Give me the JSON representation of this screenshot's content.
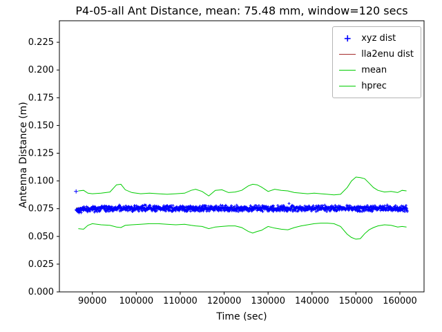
{
  "chart_data": {
    "type": "line",
    "title": "P4-05-all Ant Distance, mean: 75.48 mm, window=120 secs",
    "xlabel": "Time (sec)",
    "ylabel": "Antenna Distance (m)",
    "xlim": [
      82500,
      165500
    ],
    "ylim": [
      0,
      0.2444
    ],
    "xticks": [
      90000,
      100000,
      110000,
      120000,
      130000,
      140000,
      150000,
      160000
    ],
    "yticks": [
      0.0,
      0.025,
      0.05,
      0.075,
      0.1,
      0.125,
      0.15,
      0.175,
      0.2,
      0.225
    ],
    "grid": false,
    "legend_position": "upper right",
    "mean_value_mm": 75.48,
    "window_secs": 120,
    "series": [
      {
        "name": "xyz dist",
        "type": "scatter_plus",
        "color": "#0000ff",
        "x_start": 86300,
        "x_end": 161700,
        "base": 0.0752,
        "noise": 0.0032,
        "count": 1300,
        "outliers": [
          [
            86300,
            0.0905
          ]
        ]
      },
      {
        "name": "lla2enu dist",
        "type": "line",
        "color": "#a52a2a",
        "points": [
          [
            86300,
            0.0757
          ],
          [
            100000,
            0.0756
          ],
          [
            120000,
            0.0757
          ],
          [
            140000,
            0.0756
          ],
          [
            161700,
            0.0757
          ]
        ]
      },
      {
        "name": "mean",
        "type": "line",
        "color": "#00cc00",
        "points": [
          [
            86300,
            0.0753
          ],
          [
            88000,
            0.0751
          ],
          [
            90000,
            0.0754
          ],
          [
            93000,
            0.0756
          ],
          [
            96000,
            0.0755
          ],
          [
            100000,
            0.0754
          ],
          [
            104000,
            0.0756
          ],
          [
            108000,
            0.0755
          ],
          [
            112000,
            0.0757
          ],
          [
            116000,
            0.0754
          ],
          [
            120000,
            0.0755
          ],
          [
            124000,
            0.0753
          ],
          [
            127000,
            0.0752
          ],
          [
            130000,
            0.0755
          ],
          [
            134000,
            0.0754
          ],
          [
            138000,
            0.0756
          ],
          [
            142000,
            0.0755
          ],
          [
            146000,
            0.0754
          ],
          [
            149000,
            0.0757
          ],
          [
            152000,
            0.0756
          ],
          [
            156000,
            0.0755
          ],
          [
            159000,
            0.0754
          ],
          [
            161700,
            0.0756
          ]
        ]
      },
      {
        "name": "hprec upper",
        "type": "line",
        "color": "#00cc00",
        "points": [
          [
            86800,
            0.091
          ],
          [
            88000,
            0.0915
          ],
          [
            89000,
            0.089
          ],
          [
            90000,
            0.0885
          ],
          [
            92000,
            0.089
          ],
          [
            94000,
            0.09
          ],
          [
            95500,
            0.0965
          ],
          [
            96500,
            0.097
          ],
          [
            97500,
            0.092
          ],
          [
            99000,
            0.0895
          ],
          [
            101000,
            0.0885
          ],
          [
            103000,
            0.089
          ],
          [
            105000,
            0.0885
          ],
          [
            107000,
            0.088
          ],
          [
            109000,
            0.0885
          ],
          [
            111000,
            0.089
          ],
          [
            112500,
            0.0915
          ],
          [
            113500,
            0.0925
          ],
          [
            115000,
            0.0905
          ],
          [
            116500,
            0.0865
          ],
          [
            118000,
            0.0915
          ],
          [
            119500,
            0.092
          ],
          [
            121000,
            0.0895
          ],
          [
            122500,
            0.09
          ],
          [
            124000,
            0.0915
          ],
          [
            125500,
            0.0955
          ],
          [
            126500,
            0.097
          ],
          [
            127500,
            0.0965
          ],
          [
            128500,
            0.0945
          ],
          [
            130000,
            0.0905
          ],
          [
            131500,
            0.0925
          ],
          [
            133000,
            0.0915
          ],
          [
            134500,
            0.091
          ],
          [
            136000,
            0.0895
          ],
          [
            137500,
            0.089
          ],
          [
            139000,
            0.0885
          ],
          [
            140500,
            0.089
          ],
          [
            142000,
            0.0885
          ],
          [
            143500,
            0.088
          ],
          [
            145000,
            0.0875
          ],
          [
            146500,
            0.088
          ],
          [
            148000,
            0.094
          ],
          [
            149000,
            0.1
          ],
          [
            150000,
            0.1035
          ],
          [
            151000,
            0.103
          ],
          [
            152000,
            0.102
          ],
          [
            153000,
            0.098
          ],
          [
            154000,
            0.094
          ],
          [
            155000,
            0.0915
          ],
          [
            156500,
            0.09
          ],
          [
            158000,
            0.0905
          ],
          [
            159500,
            0.0895
          ],
          [
            160500,
            0.0915
          ],
          [
            161500,
            0.091
          ]
        ]
      },
      {
        "name": "hprec lower",
        "type": "line",
        "color": "#00cc00",
        "points": [
          [
            86800,
            0.057
          ],
          [
            88000,
            0.0565
          ],
          [
            89000,
            0.06
          ],
          [
            90000,
            0.0615
          ],
          [
            92000,
            0.0605
          ],
          [
            94000,
            0.06
          ],
          [
            95500,
            0.0585
          ],
          [
            96500,
            0.058
          ],
          [
            97500,
            0.06
          ],
          [
            99000,
            0.0605
          ],
          [
            101000,
            0.061
          ],
          [
            103000,
            0.0615
          ],
          [
            105000,
            0.0615
          ],
          [
            107000,
            0.061
          ],
          [
            109000,
            0.0605
          ],
          [
            111000,
            0.061
          ],
          [
            112500,
            0.06
          ],
          [
            113500,
            0.0595
          ],
          [
            115000,
            0.059
          ],
          [
            116500,
            0.057
          ],
          [
            118000,
            0.0585
          ],
          [
            119500,
            0.059
          ],
          [
            121000,
            0.0595
          ],
          [
            122500,
            0.0595
          ],
          [
            124000,
            0.058
          ],
          [
            125500,
            0.0545
          ],
          [
            126500,
            0.053
          ],
          [
            127500,
            0.0545
          ],
          [
            128500,
            0.0555
          ],
          [
            130000,
            0.059
          ],
          [
            131500,
            0.0575
          ],
          [
            133000,
            0.0565
          ],
          [
            134500,
            0.056
          ],
          [
            136000,
            0.058
          ],
          [
            137500,
            0.0595
          ],
          [
            139000,
            0.0605
          ],
          [
            140500,
            0.0615
          ],
          [
            142000,
            0.062
          ],
          [
            143500,
            0.062
          ],
          [
            145000,
            0.0615
          ],
          [
            146500,
            0.059
          ],
          [
            148000,
            0.052
          ],
          [
            149000,
            0.049
          ],
          [
            150000,
            0.0475
          ],
          [
            151000,
            0.048
          ],
          [
            152000,
            0.0525
          ],
          [
            153000,
            0.056
          ],
          [
            154000,
            0.058
          ],
          [
            155000,
            0.0595
          ],
          [
            156500,
            0.0605
          ],
          [
            158000,
            0.06
          ],
          [
            159500,
            0.0585
          ],
          [
            160500,
            0.059
          ],
          [
            161500,
            0.0585
          ]
        ]
      }
    ],
    "legend": [
      {
        "label": "xyz dist",
        "marker": "plus",
        "color": "#0000ff"
      },
      {
        "label": "lla2enu dist",
        "marker": "line",
        "color": "#a52a2a"
      },
      {
        "label": "mean",
        "marker": "line",
        "color": "#00cc00"
      },
      {
        "label": "hprec",
        "marker": "line",
        "color": "#00cc00"
      }
    ]
  }
}
